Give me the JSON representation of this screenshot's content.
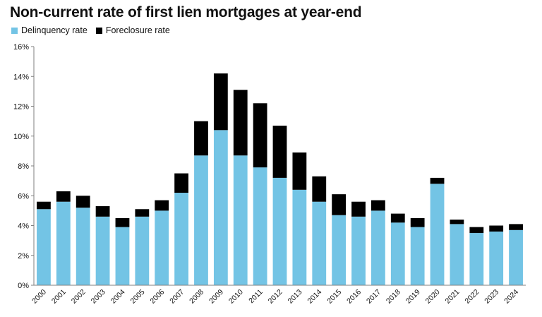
{
  "chart_data": {
    "type": "bar",
    "stacked": true,
    "title": "Non-current rate of first lien mortgages at year-end",
    "xlabel": "",
    "ylabel": "",
    "categories": [
      "2000",
      "2001",
      "2002",
      "2003",
      "2004",
      "2005",
      "2006",
      "2007",
      "2008",
      "2009",
      "2010",
      "2011",
      "2012",
      "2013",
      "2014",
      "2015",
      "2016",
      "2017",
      "2018",
      "2019",
      "2020",
      "2021",
      "2022",
      "2023",
      "2024"
    ],
    "series": [
      {
        "name": "Delinquency rate",
        "color": "#73c4e5",
        "values": [
          5.1,
          5.6,
          5.2,
          4.6,
          3.9,
          4.6,
          5.0,
          6.2,
          8.7,
          10.4,
          8.7,
          7.9,
          7.2,
          6.4,
          5.6,
          4.7,
          4.6,
          5.0,
          4.2,
          3.9,
          6.8,
          4.1,
          3.5,
          3.6,
          3.7
        ]
      },
      {
        "name": "Foreclosure rate",
        "color": "#000000",
        "values": [
          0.5,
          0.7,
          0.8,
          0.7,
          0.6,
          0.5,
          0.7,
          1.3,
          2.3,
          3.8,
          4.4,
          4.3,
          3.5,
          2.5,
          1.7,
          1.4,
          1.0,
          0.7,
          0.6,
          0.6,
          0.4,
          0.3,
          0.4,
          0.4,
          0.4
        ]
      }
    ],
    "ylim": [
      0,
      16
    ],
    "yticks": [
      0,
      2,
      4,
      6,
      8,
      10,
      12,
      14,
      16
    ],
    "ytick_suffix": "%",
    "grid": false,
    "legend_position": "top-left"
  }
}
